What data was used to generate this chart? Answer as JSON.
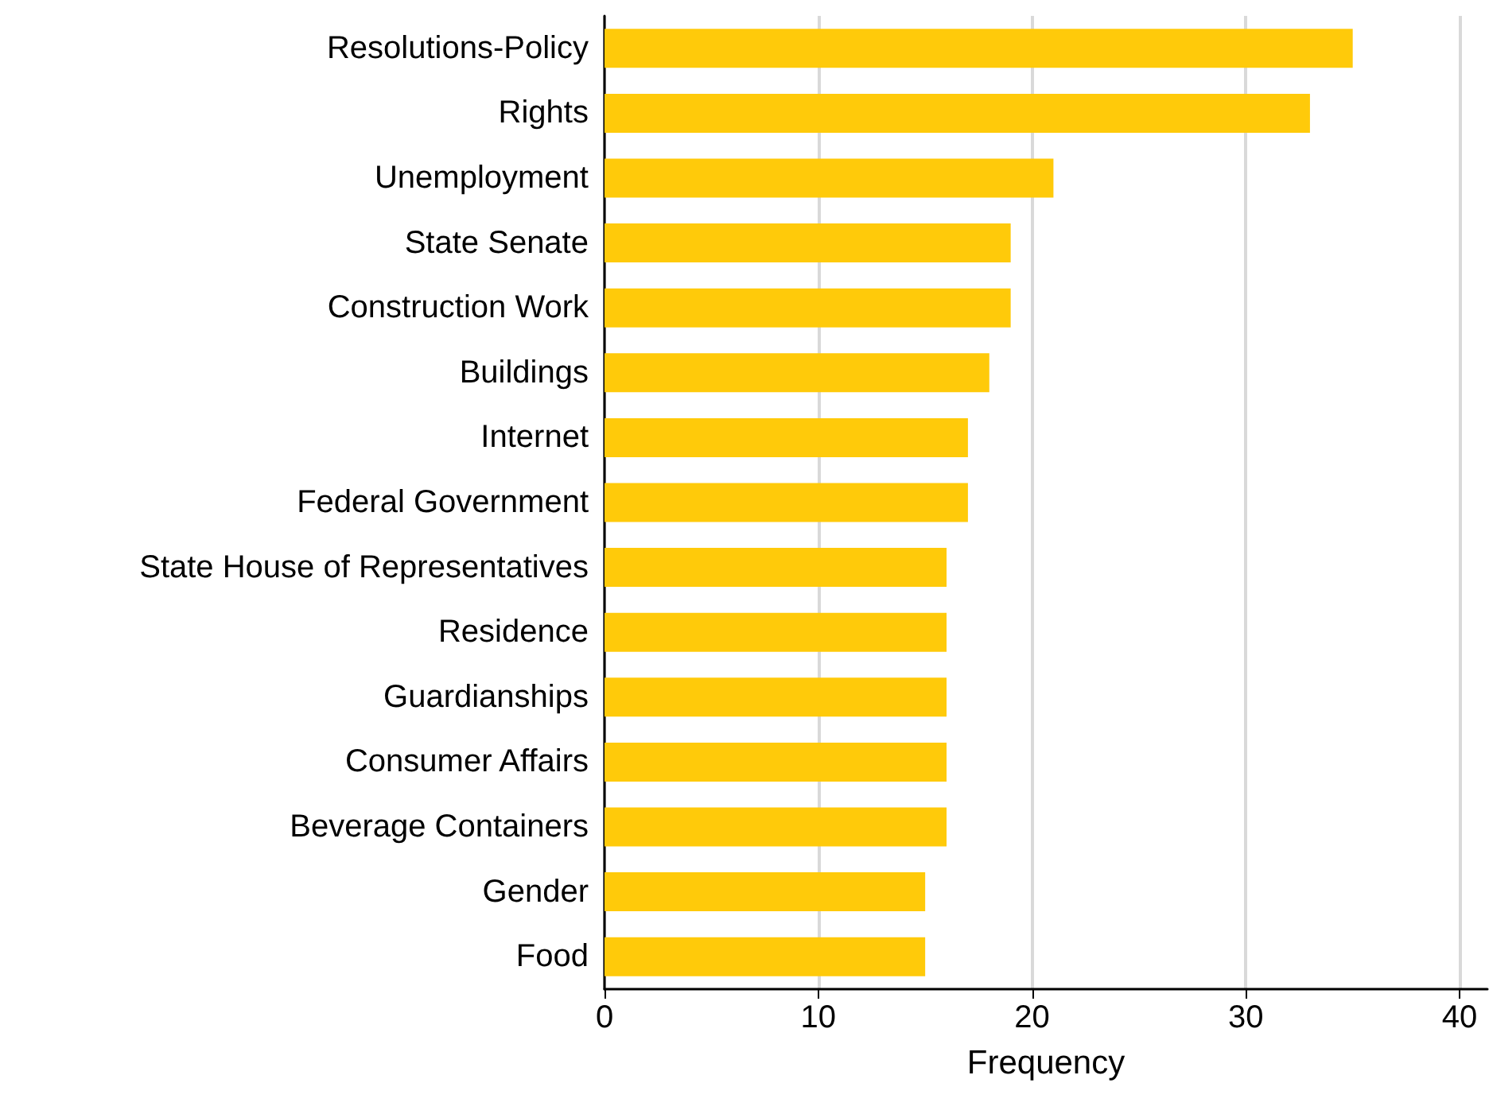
{
  "chart_data": {
    "type": "bar",
    "orientation": "horizontal",
    "xlabel": "Frequency",
    "categories": [
      "Resolutions-Policy",
      "Rights",
      "Unemployment",
      "State Senate",
      "Construction Work",
      "Buildings",
      "Internet",
      "Federal Government",
      "State House of Representatives",
      "Residence",
      "Guardianships",
      "Consumer Affairs",
      "Beverage Containers",
      "Gender",
      "Food"
    ],
    "values": [
      35,
      33,
      21,
      19,
      19,
      18,
      17,
      17,
      16,
      16,
      16,
      16,
      16,
      15,
      15
    ],
    "color": "#ffca0a",
    "xlim": [
      0,
      41.3
    ],
    "xticks": [
      0,
      10,
      20,
      30,
      40
    ],
    "grid": "x"
  }
}
